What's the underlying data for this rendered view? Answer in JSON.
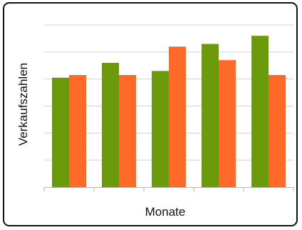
{
  "chart_data": {
    "type": "bar",
    "title": "",
    "xlabel": "Monate",
    "ylabel": "Verkaufszahlen",
    "categories": [
      "",
      "",
      "",
      "",
      ""
    ],
    "series": [
      {
        "values": [
          4.05,
          4.6,
          4.3,
          5.3,
          5.6
        ]
      },
      {
        "values": [
          4.15,
          4.15,
          5.2,
          4.7,
          4.15
        ]
      }
    ],
    "ylim": [
      0,
      6
    ],
    "grid": true,
    "legend": "none",
    "colors": [
      "#6b9a0a",
      "#ff6a2a"
    ]
  }
}
